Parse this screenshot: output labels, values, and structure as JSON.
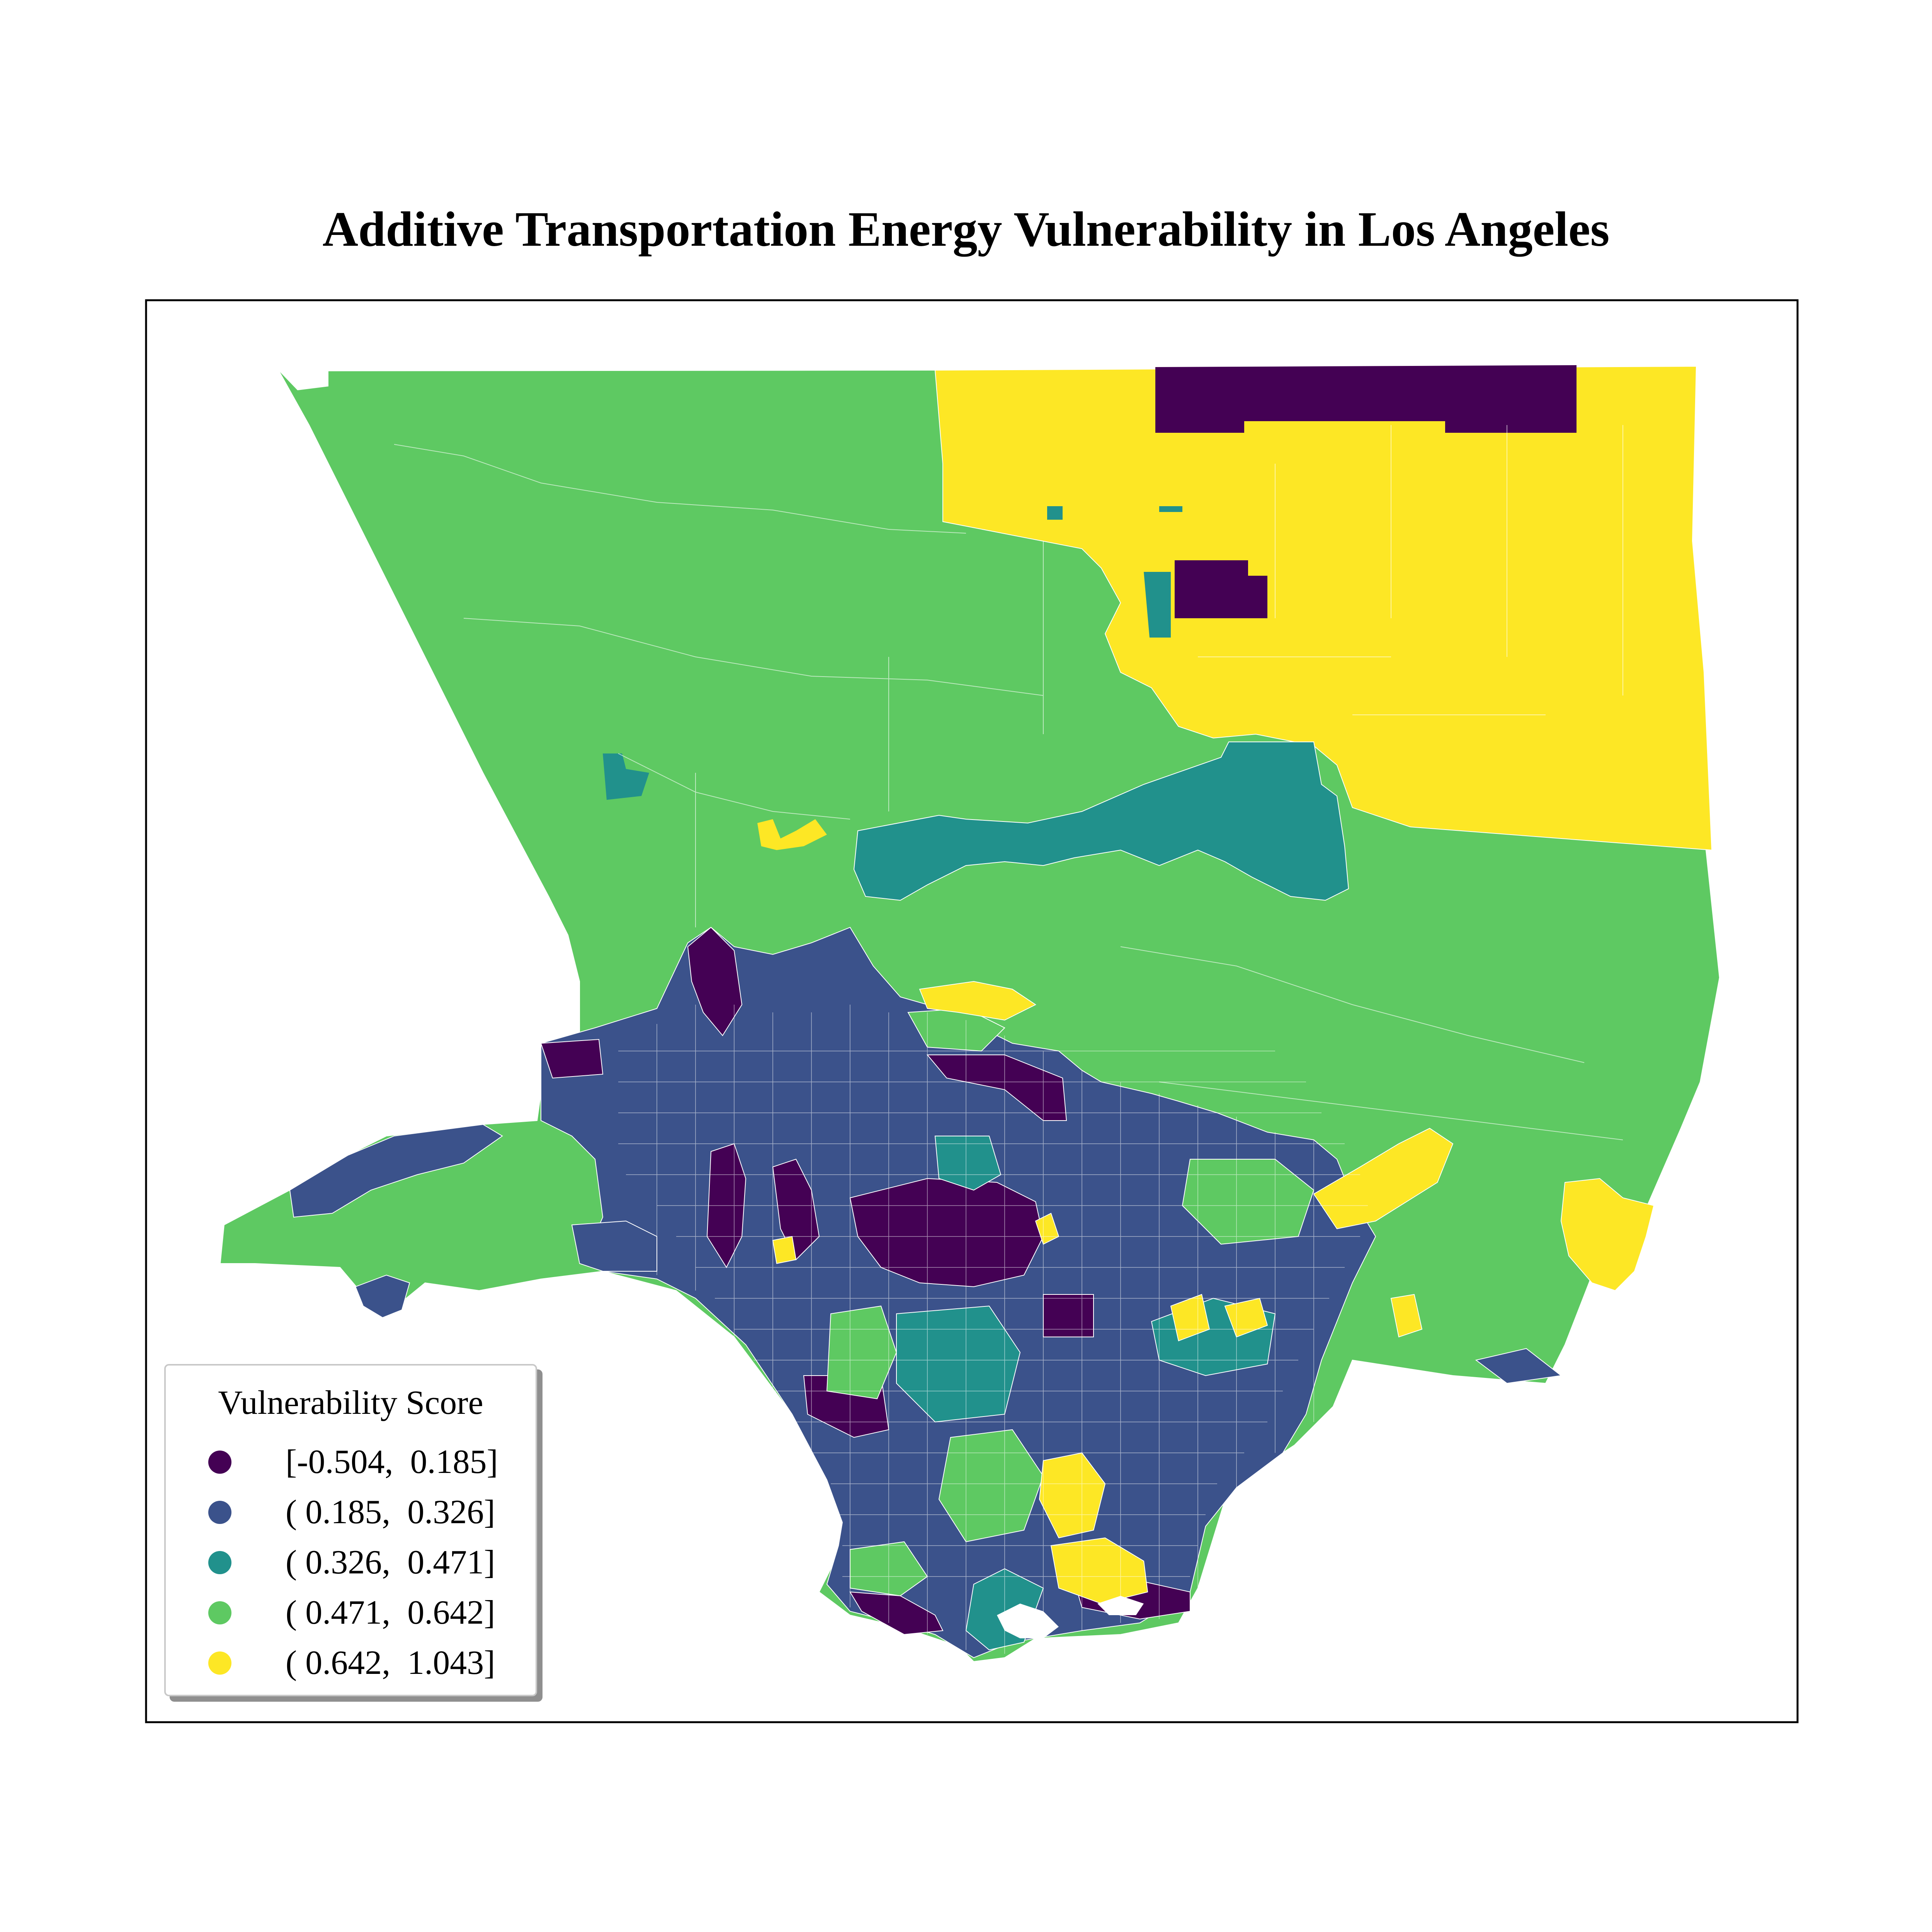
{
  "title": "Additive Transportation Energy Vulnerability in Los Angeles",
  "legend": {
    "title": "Vulnerability Score",
    "items": [
      {
        "label": "[-0.504,  0.185]",
        "color": "#440154"
      },
      {
        "label": "( 0.185,  0.326]",
        "color": "#3b528b"
      },
      {
        "label": "( 0.326,  0.471]",
        "color": "#21918c"
      },
      {
        "label": "( 0.471,  0.642]",
        "color": "#5ec962"
      },
      {
        "label": "( 0.642,  1.043]",
        "color": "#fde725"
      }
    ]
  },
  "colors": {
    "q1": "#440154",
    "q2": "#3b528b",
    "q3": "#21918c",
    "q4": "#5ec962",
    "q5": "#fde725",
    "frame": "#000000",
    "tract_border": "#ffffff"
  }
}
